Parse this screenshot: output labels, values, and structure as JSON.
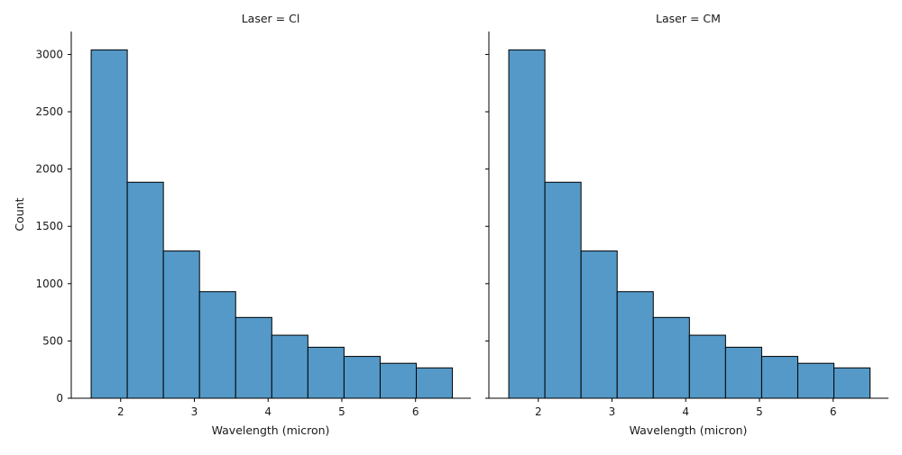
{
  "chart_data": [
    {
      "type": "bar",
      "title": "Laser = Cl",
      "xlabel": "Wavelength (micron)",
      "ylabel": "Count",
      "bins": [
        {
          "x0": 1.6,
          "x1": 2.09,
          "count": 3040
        },
        {
          "x0": 2.09,
          "x1": 2.58,
          "count": 1885
        },
        {
          "x0": 2.58,
          "x1": 3.07,
          "count": 1285
        },
        {
          "x0": 3.07,
          "x1": 3.56,
          "count": 930
        },
        {
          "x0": 3.56,
          "x1": 4.05,
          "count": 705
        },
        {
          "x0": 4.05,
          "x1": 4.54,
          "count": 550
        },
        {
          "x0": 4.54,
          "x1": 5.03,
          "count": 445
        },
        {
          "x0": 5.03,
          "x1": 5.52,
          "count": 365
        },
        {
          "x0": 5.52,
          "x1": 6.01,
          "count": 305
        },
        {
          "x0": 6.01,
          "x1": 6.5,
          "count": 265
        }
      ],
      "xlim": [
        1.33,
        6.75
      ],
      "ylim": [
        0,
        3200
      ],
      "xticks": [
        2,
        3,
        4,
        5,
        6
      ],
      "yticks": [
        0,
        500,
        1000,
        1500,
        2000,
        2500,
        3000
      ],
      "grid": false,
      "legend": "none",
      "bar_color": "#5499c7"
    },
    {
      "type": "bar",
      "title": "Laser = CM",
      "xlabel": "Wavelength (micron)",
      "ylabel": "",
      "bins": [
        {
          "x0": 1.6,
          "x1": 2.09,
          "count": 3040
        },
        {
          "x0": 2.09,
          "x1": 2.58,
          "count": 1885
        },
        {
          "x0": 2.58,
          "x1": 3.07,
          "count": 1285
        },
        {
          "x0": 3.07,
          "x1": 3.56,
          "count": 930
        },
        {
          "x0": 3.56,
          "x1": 4.05,
          "count": 705
        },
        {
          "x0": 4.05,
          "x1": 4.54,
          "count": 550
        },
        {
          "x0": 4.54,
          "x1": 5.03,
          "count": 445
        },
        {
          "x0": 5.03,
          "x1": 5.52,
          "count": 365
        },
        {
          "x0": 5.52,
          "x1": 6.01,
          "count": 305
        },
        {
          "x0": 6.01,
          "x1": 6.5,
          "count": 265
        }
      ],
      "xlim": [
        1.33,
        6.75
      ],
      "ylim": [
        0,
        3200
      ],
      "xticks": [
        2,
        3,
        4,
        5,
        6
      ],
      "yticks": [
        0,
        500,
        1000,
        1500,
        2000,
        2500,
        3000
      ],
      "grid": false,
      "legend": "none",
      "bar_color": "#5499c7"
    }
  ]
}
